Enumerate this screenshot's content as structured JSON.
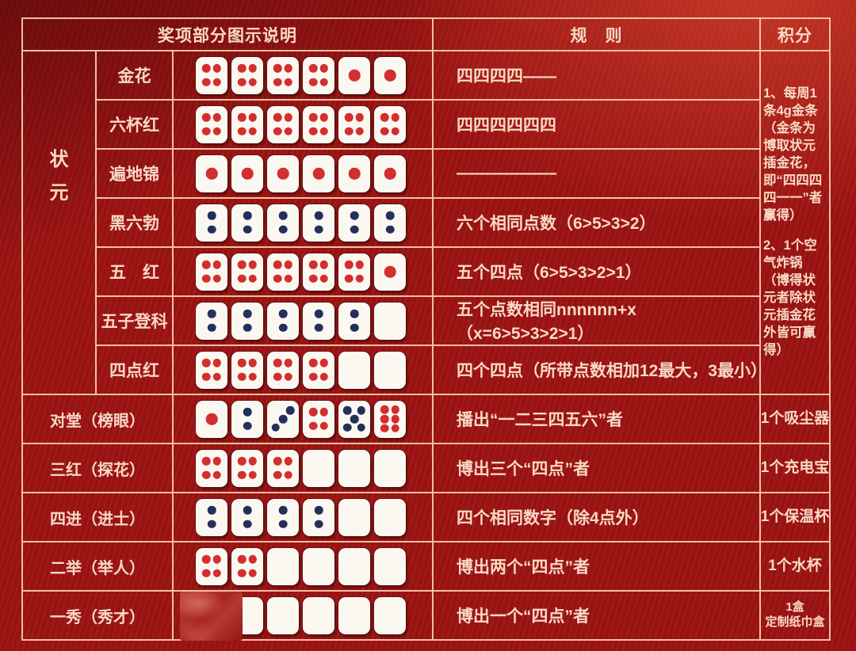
{
  "header": {
    "awards": "奖项部分图示说明",
    "rules": "规　则",
    "points": "积分"
  },
  "zhuangyuan": {
    "label": "状元",
    "points_1": "1、每周1条4g金条（金条为博取状元插金花，即“四四四四一一”者赢得）",
    "points_2": "2、1个空气炸锅（博得状元者除状元插金花外皆可赢得）"
  },
  "colors": {
    "red_pip": "#d22f2f",
    "blue_pip": "#23305c",
    "background_red": "#9d1414",
    "line": "#f2c0a4",
    "text": "#f8d9c6",
    "die_face": "#fbf7f1"
  },
  "rows": [
    {
      "group": "状元",
      "label": "金花",
      "dice": [
        "4r",
        "4r",
        "4r",
        "4r",
        "1r",
        "1r"
      ],
      "rule": "四四四四——"
    },
    {
      "group": "状元",
      "label": "六杯红",
      "dice": [
        "4r",
        "4r",
        "4r",
        "4r",
        "4r",
        "4r"
      ],
      "rule": "四四四四四四"
    },
    {
      "group": "状元",
      "label": "遍地锦",
      "dice": [
        "1r",
        "1r",
        "1r",
        "1r",
        "1r",
        "1r"
      ],
      "rule": "——————"
    },
    {
      "group": "状元",
      "label": "黑六勃",
      "dice": [
        "2b",
        "2b",
        "2b",
        "2b",
        "2b",
        "2b"
      ],
      "rule": "六个相同点数（6>5>3>2）"
    },
    {
      "group": "状元",
      "label": "五　红",
      "dice": [
        "4r",
        "4r",
        "4r",
        "4r",
        "4r",
        "1r"
      ],
      "rule": "五个四点（6>5>3>2>1）"
    },
    {
      "group": "状元",
      "label": "五子登科",
      "dice": [
        "2b",
        "2b",
        "2b",
        "2b",
        "2b",
        ""
      ],
      "rule": "五个点数相同nnnnnn+x（x=6>5>3>2>1）"
    },
    {
      "group": "状元",
      "label": "四点红",
      "dice": [
        "4r",
        "4r",
        "4r",
        "4r",
        "",
        ""
      ],
      "rule": "四个四点（所带点数相加12最大，3最小）"
    },
    {
      "label": "对堂（榜眼）",
      "dice": [
        "1r",
        "2b",
        "3b",
        "4r",
        "5b",
        "6r"
      ],
      "rule": "播出“一二三四五六”者",
      "points": [
        "1个吸尘器"
      ]
    },
    {
      "label": "三红（探花）",
      "dice": [
        "4r",
        "4r",
        "4r",
        "",
        "",
        ""
      ],
      "rule": "博出三个“四点”者",
      "points": [
        "1个充电宝"
      ]
    },
    {
      "label": "四进（进士）",
      "dice": [
        "2b",
        "2b",
        "2b",
        "2b",
        "",
        ""
      ],
      "rule": "四个相同数字（除4点外）",
      "points": [
        "1个保温杯"
      ]
    },
    {
      "label": "二举（举人）",
      "dice": [
        "4r",
        "4r",
        "",
        "",
        "",
        ""
      ],
      "rule": "博出两个“四点”者",
      "points": [
        "1个水杯"
      ]
    },
    {
      "label": "一秀（秀才）",
      "dice": [
        "x",
        "",
        "",
        "",
        "",
        ""
      ],
      "rule": "博出一个“四点”者",
      "points": [
        "1盒",
        "定制纸巾盒"
      ],
      "first_die_obscured": true
    }
  ]
}
